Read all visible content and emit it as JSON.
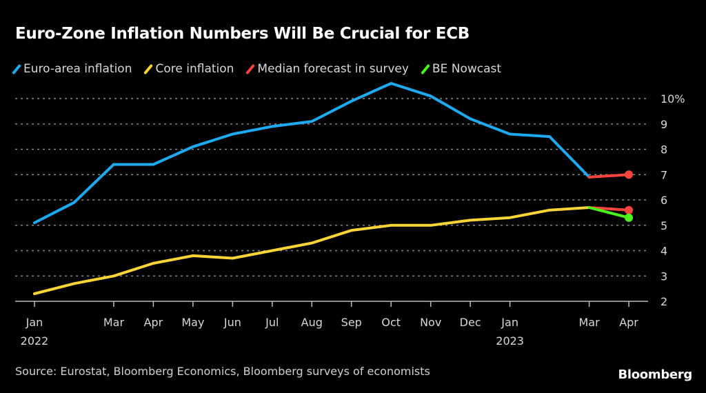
{
  "chart_data": {
    "type": "line",
    "title": "Euro-Zone Inflation Numbers Will Be Crucial for ECB",
    "xlabel": "",
    "ylabel": "",
    "y_unit": "%",
    "ylim": [
      2,
      10.8
    ],
    "yticks": [
      2,
      3,
      4,
      5,
      6,
      7,
      8,
      9,
      10
    ],
    "ytick_labels": [
      "2",
      "3",
      "4",
      "5",
      "6",
      "7",
      "8",
      "9",
      "10%"
    ],
    "y_axis_side": "right",
    "grid": true,
    "legend_position": "top-left",
    "x": [
      "2022-01",
      "2022-02",
      "2022-03",
      "2022-04",
      "2022-05",
      "2022-06",
      "2022-07",
      "2022-08",
      "2022-09",
      "2022-10",
      "2022-11",
      "2022-12",
      "2023-01",
      "2023-02",
      "2023-03",
      "2023-04"
    ],
    "xticks": [
      {
        "x": "2022-01",
        "label": "Jan",
        "sublabel": "2022"
      },
      {
        "x": "2022-03",
        "label": "Mar",
        "sublabel": ""
      },
      {
        "x": "2022-04",
        "label": "Apr",
        "sublabel": ""
      },
      {
        "x": "2022-05",
        "label": "May",
        "sublabel": ""
      },
      {
        "x": "2022-06",
        "label": "Jun",
        "sublabel": ""
      },
      {
        "x": "2022-07",
        "label": "Jul",
        "sublabel": ""
      },
      {
        "x": "2022-08",
        "label": "Aug",
        "sublabel": ""
      },
      {
        "x": "2022-09",
        "label": "Sep",
        "sublabel": ""
      },
      {
        "x": "2022-10",
        "label": "Oct",
        "sublabel": ""
      },
      {
        "x": "2022-11",
        "label": "Nov",
        "sublabel": ""
      },
      {
        "x": "2022-12",
        "label": "Dec",
        "sublabel": ""
      },
      {
        "x": "2023-01",
        "label": "Jan",
        "sublabel": "2023"
      },
      {
        "x": "2023-03",
        "label": "Mar",
        "sublabel": ""
      },
      {
        "x": "2023-04",
        "label": "Apr",
        "sublabel": ""
      }
    ],
    "series": [
      {
        "name": "Euro-area inflation",
        "color": "#1eaaf1",
        "points": [
          [
            "2022-01",
            5.1
          ],
          [
            "2022-02",
            5.9
          ],
          [
            "2022-03",
            7.4
          ],
          [
            "2022-04",
            7.4
          ],
          [
            "2022-05",
            8.1
          ],
          [
            "2022-06",
            8.6
          ],
          [
            "2022-07",
            8.9
          ],
          [
            "2022-08",
            9.1
          ],
          [
            "2022-09",
            9.9
          ],
          [
            "2022-10",
            10.6
          ],
          [
            "2022-11",
            10.1
          ],
          [
            "2022-12",
            9.2
          ],
          [
            "2023-01",
            8.6
          ],
          [
            "2023-02",
            8.5
          ],
          [
            "2023-03",
            6.9
          ]
        ],
        "end_marker": false
      },
      {
        "name": "Core inflation",
        "color": "#fbd535",
        "points": [
          [
            "2022-01",
            2.3
          ],
          [
            "2022-02",
            2.7
          ],
          [
            "2022-03",
            3.0
          ],
          [
            "2022-04",
            3.5
          ],
          [
            "2022-05",
            3.8
          ],
          [
            "2022-06",
            3.7
          ],
          [
            "2022-07",
            4.0
          ],
          [
            "2022-08",
            4.3
          ],
          [
            "2022-09",
            4.8
          ],
          [
            "2022-10",
            5.0
          ],
          [
            "2022-11",
            5.0
          ],
          [
            "2022-12",
            5.2
          ],
          [
            "2023-01",
            5.3
          ],
          [
            "2023-02",
            5.6
          ],
          [
            "2023-03",
            5.7
          ]
        ],
        "end_marker": false
      },
      {
        "name": "Median forecast in survey",
        "color": "#ff433d",
        "segments": [
          [
            [
              "2023-03",
              6.9
            ],
            [
              "2023-04",
              7.0
            ]
          ],
          [
            [
              "2023-03",
              5.7
            ],
            [
              "2023-04",
              5.6
            ]
          ]
        ],
        "end_marker": true
      },
      {
        "name": "BE Nowcast",
        "color": "#4af61a",
        "segments": [
          [
            [
              "2023-03",
              5.7
            ],
            [
              "2023-04",
              5.3
            ]
          ]
        ],
        "end_marker": true
      }
    ],
    "source": "Source: Eurostat, Bloomberg Economics, Bloomberg surveys of economists"
  },
  "header": {
    "title": "Euro-Zone Inflation Numbers Will Be Crucial for ECB"
  },
  "legend": {
    "items": [
      {
        "label": "Euro-area inflation",
        "color": "#1eaaf1"
      },
      {
        "label": "Core inflation",
        "color": "#fbd535"
      },
      {
        "label": "Median forecast in survey",
        "color": "#ff433d"
      },
      {
        "label": "BE Nowcast",
        "color": "#4af61a"
      }
    ]
  },
  "footer": {
    "source": "Source: Eurostat, Bloomberg Economics, Bloomberg surveys of economists",
    "brand": "Bloomberg"
  }
}
